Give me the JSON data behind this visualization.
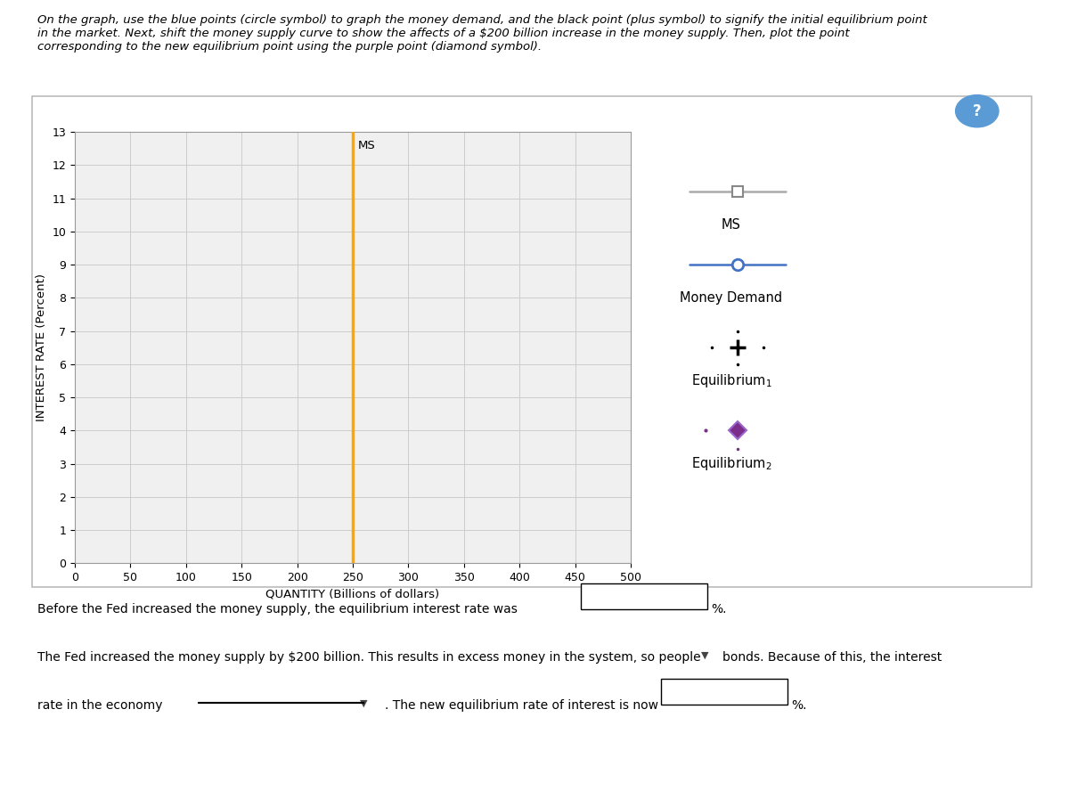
{
  "xlabel": "QUANTITY (Billions of dollars)",
  "ylabel": "INTEREST RATE (Percent)",
  "xlim": [
    0,
    500
  ],
  "ylim": [
    0,
    13
  ],
  "xticks": [
    0,
    50,
    100,
    150,
    200,
    250,
    300,
    350,
    400,
    450,
    500
  ],
  "yticks": [
    0,
    1,
    2,
    3,
    4,
    5,
    6,
    7,
    8,
    9,
    10,
    11,
    12,
    13
  ],
  "ms1_x": 250,
  "ms_color": "#FFA500",
  "ms_label": "MS",
  "money_demand_color": "#4472C4",
  "eq1_color": "#000000",
  "eq2_color": "#7B2D8B",
  "plot_bg_color": "#F0F0F0",
  "grid_color": "#CCCCCC",
  "fig_width": 12.0,
  "fig_height": 8.97,
  "legend_ms_color": "#AAAAAA",
  "legend_ms2_color": "#AAAAAA",
  "instruction_text": "On the graph, use the blue points (circle symbol) to graph the money demand, and the black point (plus symbol) to signify the initial equilibrium point\nin the market. Next, shift the money supply curve to show the affects of a $200 billion increase in the money supply. Then, plot the point\ncorresponding to the new equilibrium point using the purple point (diamond symbol).",
  "bottom1": "Before the Fed increased the money supply, the equilibrium interest rate was",
  "bottom2": "%.",
  "bottom3": "The Fed increased the money supply by $200 billion. This results in excess money in the system, so people",
  "bottom4": "bonds. Because of this, the interest",
  "bottom5": "rate in the economy",
  "bottom6": ". The new equilibrium rate of interest is now",
  "bottom7": "%."
}
